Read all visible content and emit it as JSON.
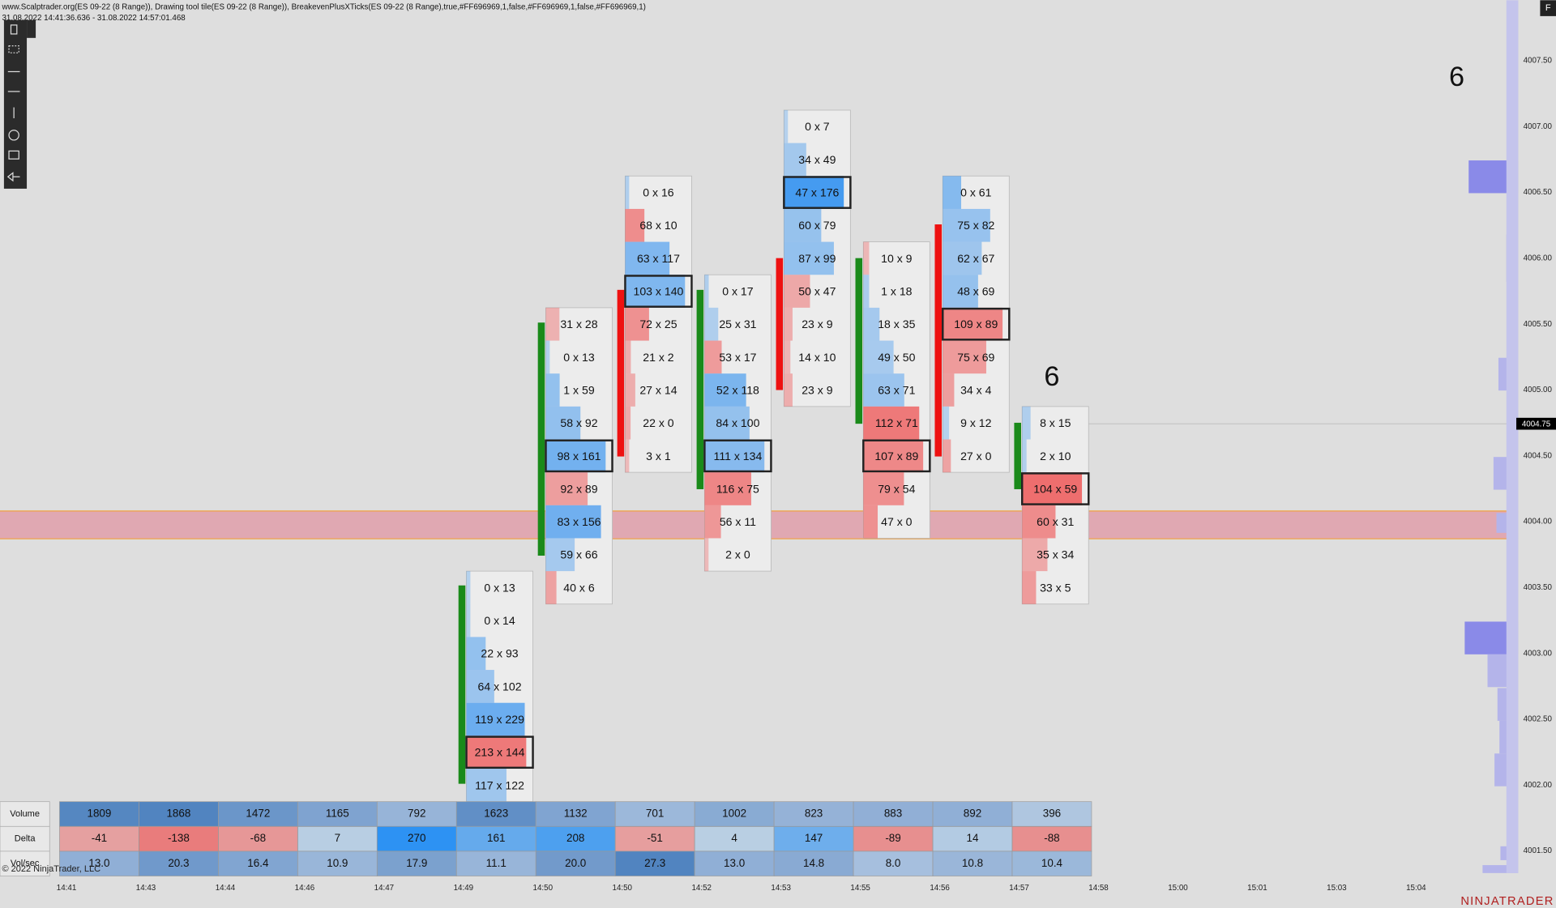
{
  "header": {
    "line1": "www.Scalptrader.org(ES 09-22 (8 Range)), Drawing tool tile(ES 09-22 (8 Range)), BreakevenPlusXTicks(ES 09-22 (8 Range),true,#FF696969,1,false,#FF696969,1,false,#FF696969,1)",
    "line2": "31.08.2022 14:41:36.636 - 31.08.2022 14:57:01.468"
  },
  "columns": [
    {
      "cells": [
        "0 x 13",
        "0 x 14",
        "22 x 93",
        "64 x 102",
        "119 x 229",
        "213 x 144",
        "117 x 122"
      ]
    },
    {
      "cells": [
        "31 x 28",
        "0 x 13",
        "1 x 59",
        "58 x 92",
        "98 x 161",
        "92 x 89",
        "83 x 156",
        "59 x 66",
        "40 x 6"
      ]
    },
    {
      "cells": [
        "0 x 16",
        "68 x 10",
        "63 x 117",
        "103 x 140",
        "72 x 25",
        "21 x 2",
        "27 x 14",
        "22 x 0",
        "3 x 1"
      ]
    },
    {
      "cells": [
        "0 x 17",
        "25 x 31",
        "53 x 17",
        "52 x 118",
        "84 x 100",
        "111 x 134",
        "116 x 75",
        "56 x 11",
        "2 x 0"
      ]
    },
    {
      "cells": [
        "0 x 7",
        "34 x 49",
        "47 x 176",
        "60 x 79",
        "87 x 99",
        "50 x 47",
        "23 x 9",
        "14 x 10",
        "23 x 9"
      ]
    },
    {
      "cells": [
        "10 x 9",
        "1 x 18",
        "18 x 35",
        "49 x 50",
        "63 x 71",
        "112 x 71",
        "107 x 89",
        "79 x 54",
        "47 x 0"
      ]
    },
    {
      "cells": [
        "0 x 61",
        "75 x 82",
        "62 x 67",
        "48 x 69",
        "109 x 89",
        "75 x 69",
        "34 x 4",
        "9 x 12",
        "27 x 0"
      ]
    },
    {
      "cells": [
        "8 x 15",
        "2 x 10",
        "104 x 59",
        "60 x 31",
        "35 x 34",
        "33 x 5"
      ]
    }
  ],
  "markers": [
    "6",
    "6"
  ],
  "current_price": "4004.75",
  "price_axis": [
    "4007.50",
    "4007.00",
    "4006.50",
    "4006.00",
    "4005.50",
    "4005.00",
    "4004.50",
    "4004.00",
    "4003.50",
    "4003.00",
    "4002.50",
    "4002.00",
    "4001.50"
  ],
  "time_axis": [
    "14:41",
    "14:43",
    "14:44",
    "14:46",
    "14:47",
    "14:49",
    "14:50",
    "14:50",
    "14:52",
    "14:53",
    "14:55",
    "14:56",
    "14:57",
    "14:58",
    "15:00",
    "15:01",
    "15:03",
    "15:04"
  ],
  "table": {
    "labels": [
      "Volume",
      "Delta",
      "Vol/sec"
    ],
    "volume": [
      1809,
      1868,
      1472,
      1165,
      792,
      1623,
      1132,
      701,
      1002,
      823,
      883,
      892,
      396
    ],
    "delta": [
      -41,
      -138,
      -68,
      7,
      270,
      161,
      208,
      -51,
      4,
      147,
      -89,
      14,
      -88
    ],
    "volsec": [
      "13.0",
      "20.3",
      "16.4",
      "10.9",
      "17.9",
      "11.1",
      "20.0",
      "27.3",
      "13.0",
      "14.8",
      "8.0",
      "10.8",
      "10.4"
    ]
  },
  "footer": {
    "copyright": "© 2022 NinjaTrader, LLC",
    "brand": "NINJATRADER"
  }
}
